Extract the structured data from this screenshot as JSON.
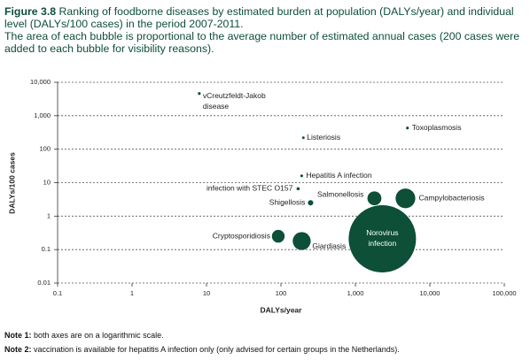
{
  "chart_data": {
    "type": "bubble",
    "figure_label": "Figure 3.8",
    "title": "Ranking of foodborne diseases by estimated burden at population (DALYs/year) and individual level (DALYs/100 cases) in the period 2007-2011.",
    "subtitle": "The area of each bubble is proportional to the average number of estimated annual cases (200 cases were added to each bubble for visibility reasons).",
    "x_label": "DALYs/year",
    "y_label": "DALYs/100 cases",
    "log_x": true,
    "log_y": true,
    "grid": true,
    "color": "#0d4f37",
    "xlim": [
      0.1,
      100000
    ],
    "ylim": [
      0.01,
      10000
    ],
    "xticks": [
      0.1,
      1,
      10,
      100,
      {
        "value": 1000,
        "label": "1,000"
      },
      {
        "value": 10000,
        "label": "10,000"
      },
      {
        "value": 100000,
        "label": "100,000"
      }
    ],
    "yticks": [
      0.01,
      0.1,
      1,
      10,
      100,
      {
        "value": 1000,
        "label": "1,000"
      },
      {
        "value": 10000,
        "label": "10,000"
      }
    ],
    "points": [
      {
        "label": [
          "vCreutzfeldt-Jakob",
          "disease"
        ],
        "x": 8,
        "y": 4600,
        "size": 1200
      },
      {
        "label": [
          "Toxoplasmosis"
        ],
        "x": 5000,
        "y": 430,
        "size": 1200
      },
      {
        "label": [
          "Listeriosis"
        ],
        "x": 200,
        "y": 220,
        "size": 1000
      },
      {
        "label": [
          "Hepatitis A infection"
        ],
        "x": 190,
        "y": 16,
        "size": 1200
      },
      {
        "label": [
          "infection with STEC O157"
        ],
        "x": 170,
        "y": 6.6,
        "size": 1500
      },
      {
        "label": [
          "Salmonellosis"
        ],
        "x": 1800,
        "y": 3.4,
        "size": 30000
      },
      {
        "label": [
          "Campylobacteriosis"
        ],
        "x": 4700,
        "y": 3.4,
        "size": 60000
      },
      {
        "label": [
          "Shigellosis"
        ],
        "x": 250,
        "y": 2.5,
        "size": 4500
      },
      {
        "label": [
          "Norovirus",
          "infection"
        ],
        "x": 2300,
        "y": 0.21,
        "size": 700000
      },
      {
        "label": [
          "Cryptosporidiosis"
        ],
        "x": 92,
        "y": 0.25,
        "size": 25000
      },
      {
        "label": [
          "Giardiasis"
        ],
        "x": 190,
        "y": 0.18,
        "size": 50000
      }
    ],
    "notes": [
      {
        "label": "Note 1:",
        "text": "both axes are on a logarithmic scale."
      },
      {
        "label": "Note 2:",
        "text": "vaccination is available for hepatitis A infection only (only advised for certain groups in the Netherlands)."
      }
    ]
  }
}
